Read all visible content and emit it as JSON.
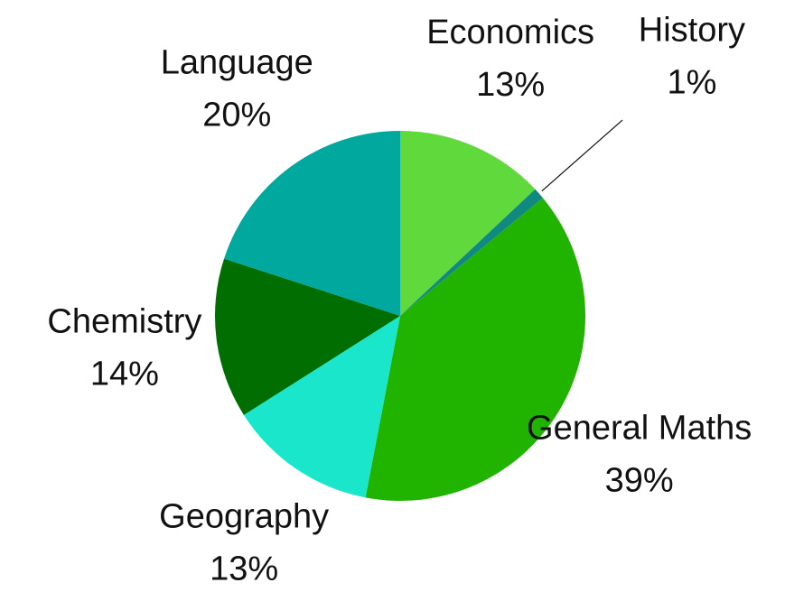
{
  "chart_data": {
    "type": "pie",
    "categories": [
      "Economics",
      "History",
      "General Maths",
      "Geography",
      "Chemistry",
      "Language"
    ],
    "values": [
      13,
      1,
      39,
      13,
      14,
      20
    ],
    "value_labels": [
      "13%",
      "1%",
      "39%",
      "13%",
      "14%",
      "20%"
    ],
    "colors": [
      "#5fd93c",
      "#108a80",
      "#20b400",
      "#1ae6cc",
      "#006e00",
      "#00a89e"
    ]
  }
}
